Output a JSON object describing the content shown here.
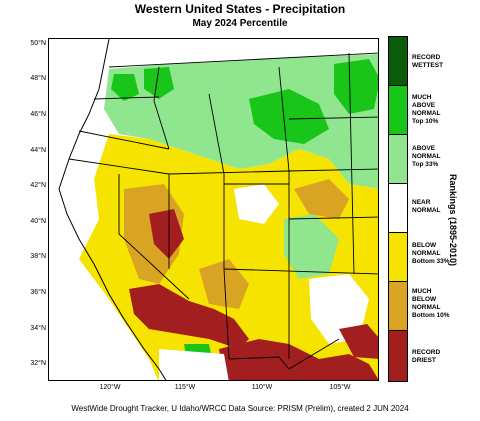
{
  "title": "Western United States - Precipitation",
  "subtitle": "May 2024 Percentile",
  "footer": "WestWide Drought Tracker, U Idaho/WRCC Data Source: PRISM (Prelim), created  2 JUN 2024",
  "legend_title": "Rankings (1895-2010)",
  "legend": [
    {
      "label": [
        "RECORD",
        "WETTEST"
      ],
      "color": "#0a5c0a"
    },
    {
      "label": [
        "MUCH",
        "ABOVE",
        "NORMAL",
        "Top 10%"
      ],
      "color": "#19c519"
    },
    {
      "label": [
        "ABOVE",
        "NORMAL",
        "Top 33%"
      ],
      "color": "#8fe68f"
    },
    {
      "label": [
        "NEAR",
        "NORMAL"
      ],
      "color": "#ffffff"
    },
    {
      "label": [
        "BELOW",
        "NORMAL",
        "Bottom 33%"
      ],
      "color": "#f7e300"
    },
    {
      "label": [
        "MUCH",
        "BELOW",
        "NORMAL",
        "Bottom 10%"
      ],
      "color": "#d9a323"
    },
    {
      "label": [
        "RECORD",
        "DRIEST"
      ],
      "color": "#a31e1e"
    }
  ],
  "lat_labels": [
    "50°N",
    "48°N",
    "46°N",
    "44°N",
    "42°N",
    "40°N",
    "38°N",
    "36°N",
    "34°N",
    "32°N"
  ],
  "lon_labels": [
    "120°W",
    "115°W",
    "110°W",
    "105°W"
  ]
}
